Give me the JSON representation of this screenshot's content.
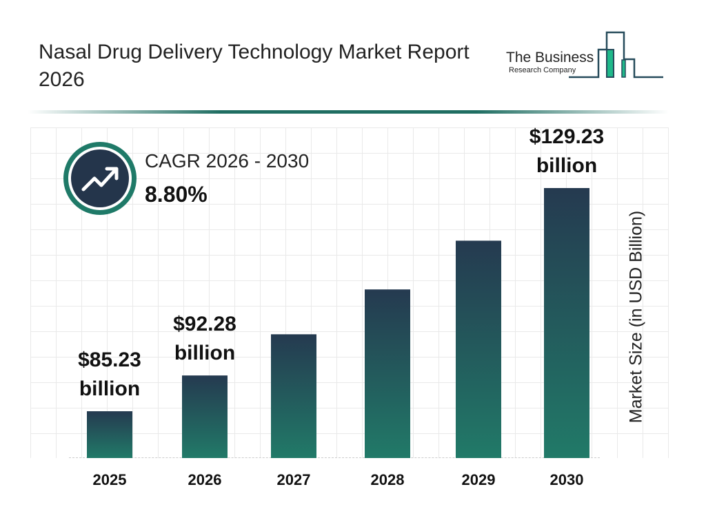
{
  "header": {
    "title": "Nasal Drug Delivery Technology Market Report 2026",
    "logo": {
      "line1": "The Business",
      "line2": "Research Company"
    }
  },
  "cagr": {
    "label": "CAGR 2026 - 2030",
    "value": "8.80%",
    "icon": "trending-up-icon"
  },
  "colors": {
    "bar_top": "#253a50",
    "bar_bottom": "#217a68",
    "accent": "#1f7a68",
    "logo_green": "#1fb98a",
    "logo_navy": "#254a5a"
  },
  "chart_data": {
    "type": "bar",
    "categories": [
      "2025",
      "2026",
      "2027",
      "2028",
      "2029",
      "2030"
    ],
    "values": [
      85.23,
      92.28,
      100.4,
      109.24,
      118.85,
      129.23
    ],
    "data_labels": [
      {
        "amount": "$85.23",
        "unit": "billion"
      },
      {
        "amount": "$92.28",
        "unit": "billion"
      },
      null,
      null,
      null,
      {
        "amount": "$129.23",
        "unit": "billion"
      }
    ],
    "ylabel": "Market Size (in USD Billion)",
    "xlabel": "",
    "grid": true,
    "legend": "none"
  }
}
